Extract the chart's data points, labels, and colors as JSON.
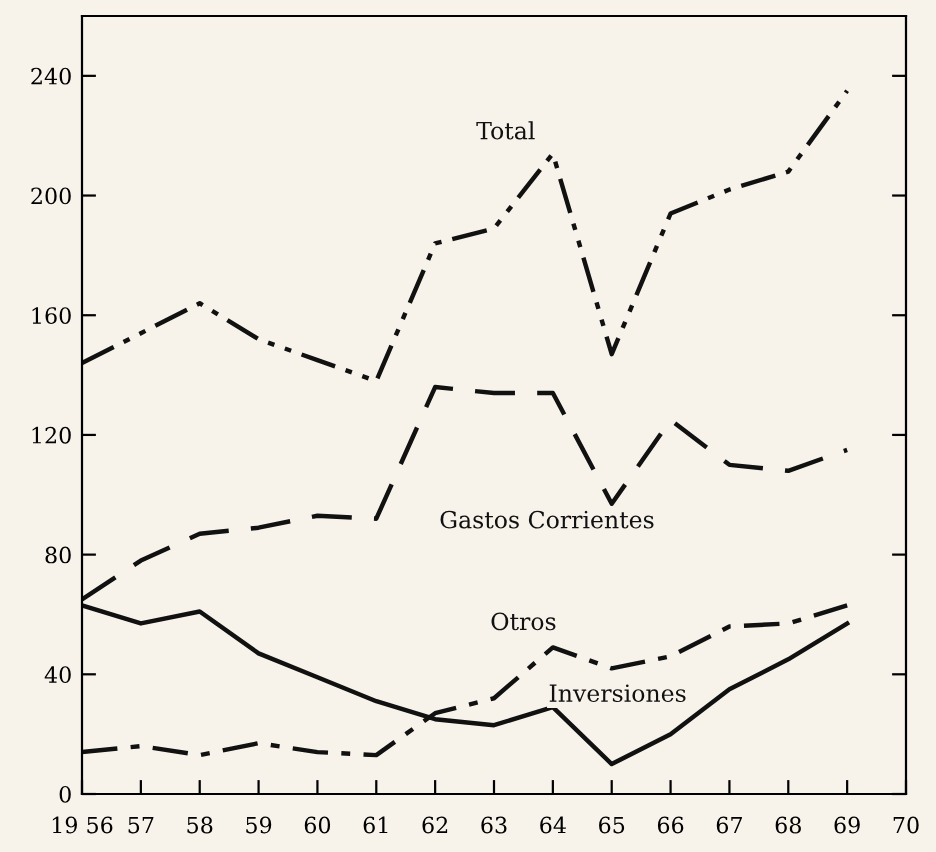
{
  "chart_data": {
    "type": "line",
    "x": [
      1956,
      1957,
      1958,
      1959,
      1960,
      1961,
      1962,
      1963,
      1964,
      1965,
      1966,
      1967,
      1968,
      1969
    ],
    "series": [
      {
        "name": "Total",
        "color": "#111111",
        "line_style": "dashdotdot",
        "values": [
          144,
          154,
          164,
          152,
          145,
          138,
          184,
          189,
          214,
          147,
          194,
          202,
          208,
          235
        ]
      },
      {
        "name": "Gastos Corrientes",
        "color": "#111111",
        "line_style": "dashed",
        "values": [
          65,
          78,
          87,
          89,
          93,
          92,
          136,
          134,
          134,
          97,
          125,
          110,
          108,
          115
        ]
      },
      {
        "name": "Otros",
        "color": "#111111",
        "line_style": "dashdot",
        "values": [
          14,
          16,
          13,
          17,
          14,
          13,
          27,
          32,
          49,
          42,
          46,
          56,
          57,
          63
        ]
      },
      {
        "name": "Inversiones",
        "color": "#111111",
        "line_style": "solid",
        "values": [
          63,
          57,
          61,
          47,
          39,
          31,
          25,
          23,
          29,
          10,
          20,
          35,
          45,
          57
        ]
      }
    ],
    "xlim": [
      1956,
      1970
    ],
    "xticks": [
      {
        "value": 1956,
        "label": "19 56"
      },
      {
        "value": 1957,
        "label": "57"
      },
      {
        "value": 1958,
        "label": "58"
      },
      {
        "value": 1959,
        "label": "59"
      },
      {
        "value": 1960,
        "label": "60"
      },
      {
        "value": 1961,
        "label": "61"
      },
      {
        "value": 1962,
        "label": "62"
      },
      {
        "value": 1963,
        "label": "63"
      },
      {
        "value": 1964,
        "label": "64"
      },
      {
        "value": 1965,
        "label": "65"
      },
      {
        "value": 1966,
        "label": "66"
      },
      {
        "value": 1967,
        "label": "67"
      },
      {
        "value": 1968,
        "label": "68"
      },
      {
        "value": 1969,
        "label": "69"
      },
      {
        "value": 1970,
        "label": "70"
      }
    ],
    "ylim": [
      0,
      260
    ],
    "yticks": [
      0,
      40,
      80,
      120,
      160,
      200,
      240
    ],
    "grid": false,
    "legend": false,
    "marker": "none"
  }
}
